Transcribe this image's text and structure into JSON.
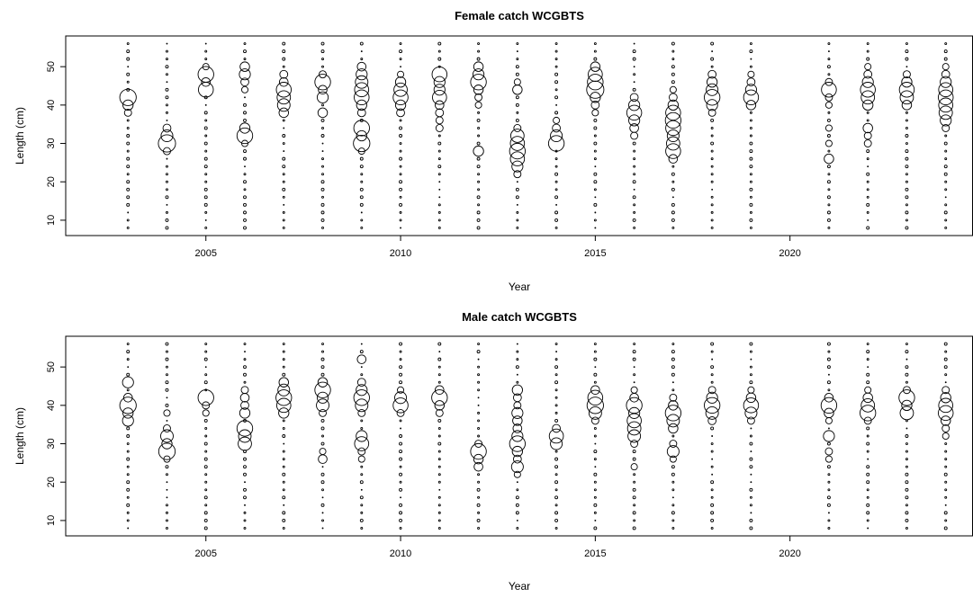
{
  "chart_data": [
    {
      "type": "scatter",
      "subtype": "bubble",
      "title": "Female catch WCGBTS",
      "xlabel": "Year",
      "ylabel": "Length (cm)",
      "xticks": [
        2005,
        2010,
        2015,
        2020
      ],
      "yticks": [
        10,
        20,
        30,
        40,
        50
      ],
      "xlim": [
        2001.4,
        2024.7
      ],
      "ylim": [
        6,
        58
      ],
      "years": [
        2003,
        2004,
        2005,
        2006,
        2007,
        2008,
        2009,
        2010,
        2011,
        2012,
        2013,
        2014,
        2015,
        2016,
        2017,
        2018,
        2019,
        2021,
        2022,
        2023,
        2024
      ],
      "length_bins": [
        8,
        10,
        12,
        14,
        16,
        18,
        20,
        22,
        24,
        26,
        28,
        30,
        32,
        34,
        36,
        38,
        40,
        42,
        44,
        46,
        48,
        50,
        52,
        54,
        56
      ],
      "modes": [
        [
          [
            42,
            0.9
          ],
          [
            40,
            0.5
          ],
          [
            38,
            0.3
          ]
        ],
        [
          [
            30,
            0.95
          ],
          [
            32,
            0.6
          ],
          [
            34,
            0.35
          ],
          [
            28,
            0.3
          ]
        ],
        [
          [
            48,
            0.85
          ],
          [
            44,
            0.8
          ],
          [
            46,
            0.4
          ],
          [
            50,
            0.25
          ]
        ],
        [
          [
            32,
            0.85
          ],
          [
            34,
            0.5
          ],
          [
            48,
            0.55
          ],
          [
            50,
            0.45
          ],
          [
            46,
            0.35
          ],
          [
            44,
            0.25
          ],
          [
            30,
            0.25
          ]
        ],
        [
          [
            44,
            0.8
          ],
          [
            42,
            0.7
          ],
          [
            40,
            0.65
          ],
          [
            38,
            0.45
          ],
          [
            46,
            0.4
          ],
          [
            48,
            0.35
          ]
        ],
        [
          [
            46,
            0.85
          ],
          [
            42,
            0.55
          ],
          [
            38,
            0.45
          ],
          [
            44,
            0.4
          ],
          [
            48,
            0.3
          ]
        ],
        [
          [
            30,
            0.9
          ],
          [
            34,
            0.85
          ],
          [
            42,
            0.8
          ],
          [
            44,
            0.75
          ],
          [
            46,
            0.65
          ],
          [
            48,
            0.55
          ],
          [
            32,
            0.5
          ],
          [
            40,
            0.5
          ],
          [
            50,
            0.4
          ],
          [
            38,
            0.35
          ],
          [
            28,
            0.25
          ]
        ],
        [
          [
            42,
            0.8
          ],
          [
            44,
            0.7
          ],
          [
            40,
            0.5
          ],
          [
            46,
            0.5
          ],
          [
            38,
            0.35
          ],
          [
            48,
            0.25
          ]
        ],
        [
          [
            48,
            0.8
          ],
          [
            42,
            0.75
          ],
          [
            46,
            0.55
          ],
          [
            44,
            0.55
          ],
          [
            40,
            0.4
          ],
          [
            38,
            0.35
          ],
          [
            36,
            0.3
          ],
          [
            34,
            0.3
          ]
        ],
        [
          [
            46,
            0.85
          ],
          [
            48,
            0.55
          ],
          [
            50,
            0.45
          ],
          [
            28,
            0.5
          ],
          [
            44,
            0.45
          ],
          [
            42,
            0.3
          ],
          [
            40,
            0.25
          ]
        ],
        [
          [
            28,
            0.85
          ],
          [
            26,
            0.75
          ],
          [
            30,
            0.75
          ],
          [
            32,
            0.7
          ],
          [
            24,
            0.55
          ],
          [
            44,
            0.45
          ],
          [
            22,
            0.3
          ],
          [
            34,
            0.3
          ],
          [
            46,
            0.25
          ]
        ],
        [
          [
            30,
            0.85
          ],
          [
            32,
            0.6
          ],
          [
            34,
            0.35
          ],
          [
            36,
            0.25
          ]
        ],
        [
          [
            44,
            0.95
          ],
          [
            46,
            0.85
          ],
          [
            48,
            0.75
          ],
          [
            42,
            0.5
          ],
          [
            50,
            0.45
          ],
          [
            40,
            0.35
          ],
          [
            38,
            0.25
          ]
        ],
        [
          [
            38,
            0.8
          ],
          [
            36,
            0.55
          ],
          [
            40,
            0.55
          ],
          [
            34,
            0.4
          ],
          [
            42,
            0.35
          ],
          [
            32,
            0.3
          ]
        ],
        [
          [
            36,
            0.85
          ],
          [
            34,
            0.8
          ],
          [
            38,
            0.8
          ],
          [
            28,
            0.8
          ],
          [
            30,
            0.7
          ],
          [
            32,
            0.6
          ],
          [
            40,
            0.5
          ],
          [
            26,
            0.4
          ],
          [
            42,
            0.35
          ],
          [
            44,
            0.25
          ]
        ],
        [
          [
            42,
            0.85
          ],
          [
            44,
            0.6
          ],
          [
            40,
            0.55
          ],
          [
            46,
            0.5
          ],
          [
            48,
            0.35
          ],
          [
            38,
            0.3
          ]
        ],
        [
          [
            42,
            0.8
          ],
          [
            44,
            0.55
          ],
          [
            40,
            0.45
          ],
          [
            46,
            0.35
          ],
          [
            48,
            0.25
          ]
        ],
        [
          [
            44,
            0.8
          ],
          [
            26,
            0.45
          ],
          [
            46,
            0.3
          ],
          [
            42,
            0.3
          ],
          [
            34,
            0.25
          ],
          [
            40,
            0.25
          ],
          [
            30,
            0.25
          ]
        ],
        [
          [
            44,
            0.8
          ],
          [
            42,
            0.7
          ],
          [
            46,
            0.55
          ],
          [
            40,
            0.5
          ],
          [
            34,
            0.45
          ],
          [
            48,
            0.35
          ],
          [
            32,
            0.3
          ],
          [
            30,
            0.3
          ],
          [
            50,
            0.25
          ]
        ],
        [
          [
            44,
            0.8
          ],
          [
            42,
            0.7
          ],
          [
            46,
            0.5
          ],
          [
            40,
            0.45
          ],
          [
            48,
            0.3
          ]
        ],
        [
          [
            42,
            0.8
          ],
          [
            44,
            0.75
          ],
          [
            40,
            0.75
          ],
          [
            38,
            0.7
          ],
          [
            36,
            0.55
          ],
          [
            46,
            0.55
          ],
          [
            48,
            0.35
          ],
          [
            34,
            0.3
          ],
          [
            50,
            0.25
          ]
        ]
      ]
    },
    {
      "type": "scatter",
      "subtype": "bubble",
      "title": "Male catch WCGBTS",
      "xlabel": "Year",
      "ylabel": "Length (cm)",
      "xticks": [
        2005,
        2010,
        2015,
        2020
      ],
      "yticks": [
        10,
        20,
        30,
        40,
        50
      ],
      "xlim": [
        2001.4,
        2024.7
      ],
      "ylim": [
        6,
        58
      ],
      "years": [
        2003,
        2004,
        2005,
        2006,
        2007,
        2008,
        2009,
        2010,
        2011,
        2012,
        2013,
        2014,
        2015,
        2016,
        2017,
        2018,
        2019,
        2021,
        2022,
        2023,
        2024
      ],
      "length_bins": [
        8,
        10,
        12,
        14,
        16,
        18,
        20,
        22,
        24,
        26,
        28,
        30,
        32,
        34,
        36,
        38,
        40,
        42,
        44,
        46,
        48,
        50,
        52,
        54,
        56
      ],
      "modes": [
        [
          [
            40,
            0.9
          ],
          [
            46,
            0.55
          ],
          [
            36,
            0.55
          ],
          [
            38,
            0.5
          ],
          [
            42,
            0.4
          ]
        ],
        [
          [
            28,
            0.9
          ],
          [
            32,
            0.65
          ],
          [
            30,
            0.5
          ],
          [
            34,
            0.3
          ],
          [
            38,
            0.25
          ],
          [
            26,
            0.25
          ]
        ],
        [
          [
            42,
            0.85
          ],
          [
            40,
            0.3
          ],
          [
            38,
            0.25
          ]
        ],
        [
          [
            34,
            0.85
          ],
          [
            30,
            0.7
          ],
          [
            32,
            0.65
          ],
          [
            38,
            0.5
          ],
          [
            42,
            0.4
          ],
          [
            40,
            0.35
          ],
          [
            44,
            0.3
          ]
        ],
        [
          [
            42,
            0.85
          ],
          [
            40,
            0.75
          ],
          [
            44,
            0.6
          ],
          [
            38,
            0.5
          ],
          [
            46,
            0.45
          ]
        ],
        [
          [
            44,
            0.85
          ],
          [
            40,
            0.65
          ],
          [
            42,
            0.55
          ],
          [
            46,
            0.45
          ],
          [
            26,
            0.4
          ],
          [
            38,
            0.3
          ],
          [
            28,
            0.25
          ]
        ],
        [
          [
            42,
            0.85
          ],
          [
            30,
            0.75
          ],
          [
            32,
            0.55
          ],
          [
            40,
            0.65
          ],
          [
            44,
            0.55
          ],
          [
            52,
            0.4
          ],
          [
            46,
            0.35
          ],
          [
            38,
            0.3
          ],
          [
            28,
            0.3
          ],
          [
            26,
            0.25
          ]
        ],
        [
          [
            40,
            0.8
          ],
          [
            42,
            0.6
          ],
          [
            38,
            0.3
          ],
          [
            44,
            0.25
          ]
        ],
        [
          [
            42,
            0.85
          ],
          [
            40,
            0.45
          ],
          [
            44,
            0.4
          ],
          [
            38,
            0.3
          ]
        ],
        [
          [
            28,
            0.85
          ],
          [
            26,
            0.45
          ],
          [
            24,
            0.4
          ],
          [
            30,
            0.3
          ]
        ],
        [
          [
            30,
            0.85
          ],
          [
            24,
            0.6
          ],
          [
            38,
            0.55
          ],
          [
            32,
            0.55
          ],
          [
            28,
            0.5
          ],
          [
            44,
            0.5
          ],
          [
            36,
            0.45
          ],
          [
            34,
            0.4
          ],
          [
            42,
            0.35
          ],
          [
            26,
            0.35
          ],
          [
            40,
            0.3
          ],
          [
            22,
            0.25
          ]
        ],
        [
          [
            32,
            0.75
          ],
          [
            30,
            0.6
          ],
          [
            34,
            0.35
          ]
        ],
        [
          [
            40,
            0.9
          ],
          [
            42,
            0.8
          ],
          [
            38,
            0.65
          ],
          [
            44,
            0.4
          ],
          [
            36,
            0.3
          ]
        ],
        [
          [
            40,
            0.85
          ],
          [
            36,
            0.75
          ],
          [
            34,
            0.7
          ],
          [
            32,
            0.65
          ],
          [
            38,
            0.55
          ],
          [
            42,
            0.4
          ],
          [
            30,
            0.3
          ],
          [
            24,
            0.25
          ],
          [
            44,
            0.25
          ]
        ],
        [
          [
            38,
            0.85
          ],
          [
            36,
            0.65
          ],
          [
            28,
            0.6
          ],
          [
            34,
            0.45
          ],
          [
            40,
            0.45
          ],
          [
            30,
            0.3
          ],
          [
            42,
            0.3
          ],
          [
            26,
            0.25
          ]
        ],
        [
          [
            40,
            0.85
          ],
          [
            38,
            0.65
          ],
          [
            42,
            0.55
          ],
          [
            36,
            0.35
          ],
          [
            44,
            0.3
          ]
        ],
        [
          [
            40,
            0.8
          ],
          [
            38,
            0.6
          ],
          [
            42,
            0.45
          ],
          [
            36,
            0.3
          ],
          [
            44,
            0.25
          ]
        ],
        [
          [
            40,
            0.85
          ],
          [
            32,
            0.55
          ],
          [
            38,
            0.45
          ],
          [
            42,
            0.4
          ],
          [
            28,
            0.3
          ],
          [
            26,
            0.25
          ],
          [
            36,
            0.25
          ]
        ],
        [
          [
            38,
            0.85
          ],
          [
            40,
            0.7
          ],
          [
            42,
            0.45
          ],
          [
            36,
            0.3
          ],
          [
            44,
            0.25
          ]
        ],
        [
          [
            42,
            0.85
          ],
          [
            38,
            0.7
          ],
          [
            40,
            0.5
          ],
          [
            44,
            0.3
          ]
        ],
        [
          [
            38,
            0.8
          ],
          [
            40,
            0.75
          ],
          [
            42,
            0.5
          ],
          [
            36,
            0.45
          ],
          [
            34,
            0.3
          ],
          [
            44,
            0.3
          ],
          [
            32,
            0.25
          ]
        ]
      ]
    }
  ]
}
